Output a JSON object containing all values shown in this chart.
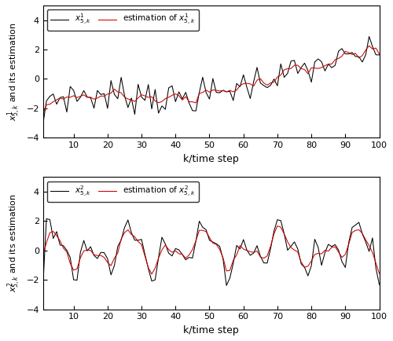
{
  "xlabel": "k/time step",
  "ylabel1": "$x^1_{5,k}$ and its estimation",
  "ylabel2": "$x^2_{5,k}$ and its estimation",
  "legend1_black": "$x^1_{5,k}$",
  "legend1_red": "estimation of $x^1_{5,k}$",
  "legend2_black": "$x^2_{5,k}$",
  "legend2_red": "estimation of $x^2_{5,k}$",
  "xlim": [
    1,
    100
  ],
  "ylim": [
    -4,
    5
  ],
  "xticks": [
    10,
    20,
    30,
    40,
    50,
    60,
    70,
    80,
    90,
    100
  ],
  "yticks": [
    -4,
    -2,
    0,
    2,
    4
  ],
  "black_color": "#000000",
  "red_color": "#cc0000",
  "background_color": "#ffffff",
  "n_points": 100
}
